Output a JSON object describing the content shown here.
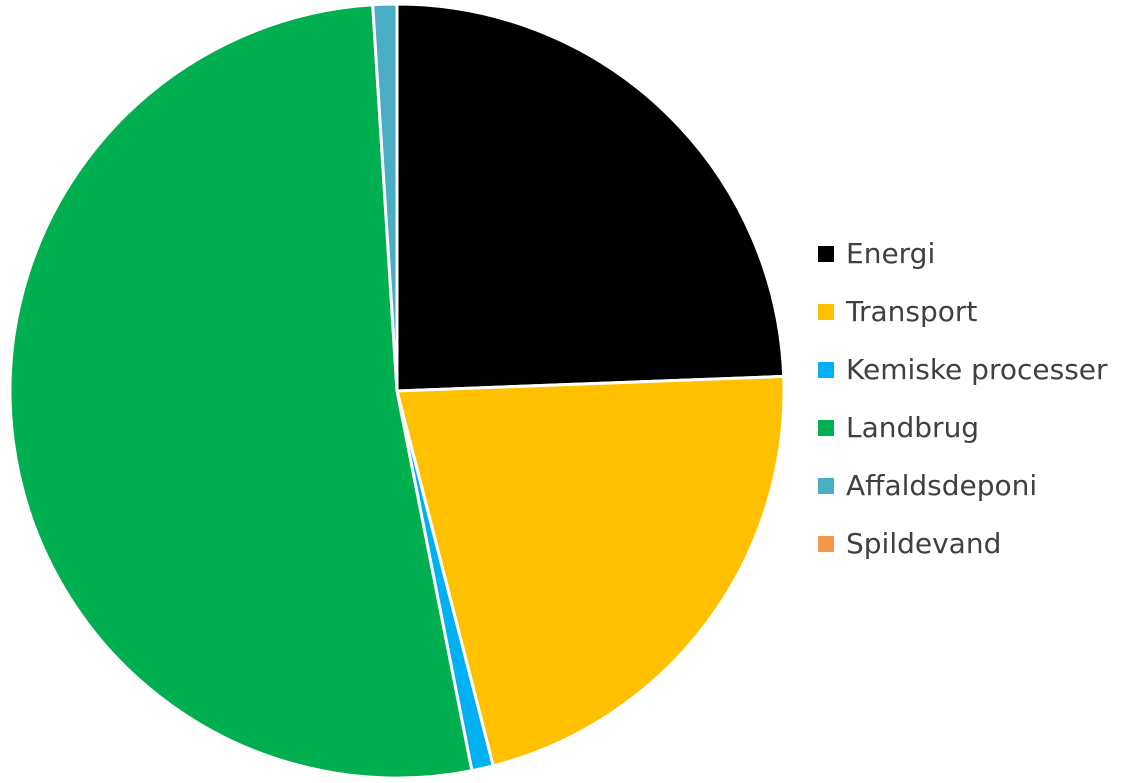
{
  "chart_data": {
    "type": "pie",
    "title": "",
    "legend_position": "right",
    "start_angle_deg": 0,
    "direction": "clockwise",
    "slices": [
      {
        "label": "Energi",
        "value": 24.4,
        "color": "#000000"
      },
      {
        "label": "Transport",
        "value": 21.6,
        "color": "#FFC000"
      },
      {
        "label": "Kemiske processer",
        "value": 0.9,
        "color": "#00B0F0"
      },
      {
        "label": "Landbrug",
        "value": 52.1,
        "color": "#00B050"
      },
      {
        "label": "Affaldsdeponi",
        "value": 1.0,
        "color": "#4BACC6"
      },
      {
        "label": "Spildevand",
        "value": 0.0,
        "color": "#F79646"
      }
    ]
  }
}
